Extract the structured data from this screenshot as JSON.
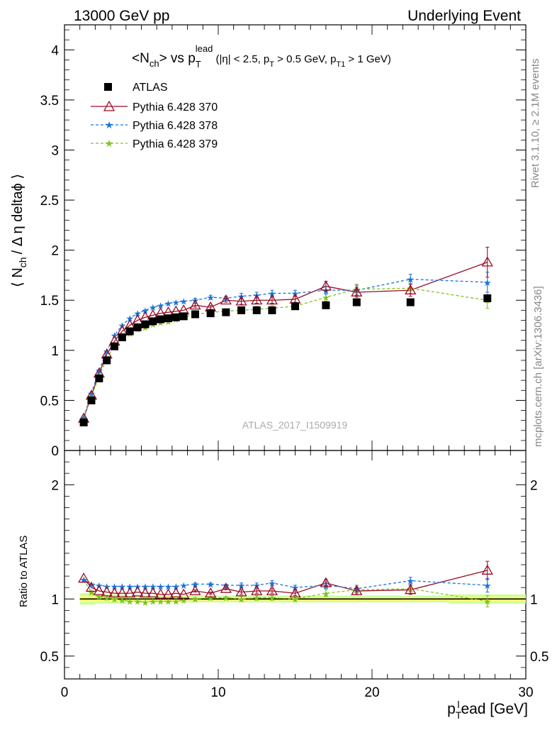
{
  "header": {
    "left": "13000 GeV pp",
    "right": "Underlying Event"
  },
  "side_labels": {
    "rivet": "Rivet 3.1.10, ≥ 2.1M events",
    "mcplots": "mcplots.cern.ch [arXiv:1306.3436]"
  },
  "plot_title": {
    "main": "<N",
    "main_sub": "ch",
    "vs": "> vs p",
    "vs_sub": "T",
    "vs_sup": "lead",
    "cuts_1": " (|η| < 2.5, p",
    "cuts_sub_1": "T",
    "cuts_2": " > 0.5 GeV, p",
    "cuts_sub_2": "T1",
    "cuts_3": " > 1 GeV)"
  },
  "watermark": "ATLAS_2017_I1509919",
  "ylabel_main": {
    "a": "⟨ N",
    "a_sub": "ch",
    "b": "/ Δ η deltaϕ ⟩"
  },
  "ylabel_ratio": "Ratio to ATLAS",
  "xlabel": {
    "a": "p",
    "a_sub": "T",
    "a_sup": "l",
    "b": "ead [GeV]"
  },
  "colors": {
    "atlas": "#000000",
    "p370": "#9a0c25",
    "p378": "#1a73d9",
    "p379": "#7fc31c",
    "band_inner": "#ffff77",
    "band_outer": "#ccff99"
  },
  "chart_data": {
    "type": "scatter",
    "xlim": [
      0,
      30
    ],
    "ylim_main": [
      0,
      4.25
    ],
    "ylim_ratio": [
      0.3,
      2.3
    ],
    "x_ticks": [
      "0",
      "10",
      "20",
      "30"
    ],
    "y_ticks_main": [
      "0",
      "0.5",
      "1",
      "1.5",
      "2",
      "2.5",
      "3",
      "3.5",
      "4"
    ],
    "y_ticks_ratio": [
      "0.5",
      "1",
      "2"
    ],
    "legend_position": "top-left",
    "x": [
      1.25,
      1.75,
      2.25,
      2.75,
      3.25,
      3.75,
      4.25,
      4.75,
      5.25,
      5.75,
      6.25,
      6.75,
      7.25,
      7.75,
      8.5,
      9.5,
      10.5,
      11.5,
      12.5,
      13.5,
      15.0,
      17.0,
      19.0,
      22.5,
      27.5
    ],
    "series": [
      {
        "name": "ATLAS",
        "marker": "square",
        "values": [
          0.28,
          0.5,
          0.72,
          0.9,
          1.04,
          1.13,
          1.19,
          1.23,
          1.26,
          1.29,
          1.31,
          1.32,
          1.33,
          1.34,
          1.36,
          1.37,
          1.38,
          1.4,
          1.4,
          1.4,
          1.44,
          1.45,
          1.48,
          1.48,
          1.52
        ]
      },
      {
        "name": "Pythia 6.428 370",
        "marker": "triangle",
        "values": [
          0.32,
          0.55,
          0.77,
          0.96,
          1.09,
          1.19,
          1.25,
          1.3,
          1.33,
          1.35,
          1.37,
          1.38,
          1.39,
          1.4,
          1.45,
          1.43,
          1.5,
          1.49,
          1.5,
          1.5,
          1.51,
          1.64,
          1.58,
          1.6,
          1.88
        ],
        "err": [
          0,
          0,
          0,
          0,
          0,
          0,
          0,
          0,
          0,
          0,
          0,
          0,
          0,
          0,
          0.02,
          0.02,
          0.02,
          0.03,
          0.03,
          0.03,
          0.03,
          0.05,
          0.05,
          0.06,
          0.15
        ]
      },
      {
        "name": "Pythia 6.428 378",
        "marker": "star",
        "values": [
          0.33,
          0.57,
          0.8,
          0.99,
          1.15,
          1.25,
          1.32,
          1.37,
          1.4,
          1.43,
          1.45,
          1.47,
          1.48,
          1.49,
          1.5,
          1.53,
          1.52,
          1.54,
          1.55,
          1.57,
          1.57,
          1.6,
          1.6,
          1.71,
          1.68
        ],
        "err": [
          0,
          0,
          0,
          0,
          0,
          0,
          0,
          0,
          0,
          0,
          0,
          0,
          0,
          0,
          0.02,
          0.02,
          0.02,
          0.03,
          0.03,
          0.03,
          0.03,
          0.04,
          0.05,
          0.05,
          0.1
        ]
      },
      {
        "name": "Pythia 6.428 379",
        "marker": "star",
        "values": [
          0.32,
          0.54,
          0.74,
          0.92,
          1.05,
          1.13,
          1.17,
          1.21,
          1.23,
          1.26,
          1.28,
          1.29,
          1.31,
          1.33,
          1.36,
          1.38,
          1.39,
          1.4,
          1.41,
          1.42,
          1.44,
          1.53,
          1.61,
          1.62,
          1.5
        ],
        "err": [
          0,
          0,
          0,
          0,
          0,
          0,
          0,
          0,
          0,
          0,
          0,
          0,
          0,
          0,
          0.02,
          0.02,
          0.02,
          0.03,
          0.03,
          0.03,
          0.03,
          0.04,
          0.05,
          0.05,
          0.08
        ]
      }
    ],
    "ratio_series": [
      {
        "name": "Pythia 6.428 370",
        "values": [
          1.18,
          1.1,
          1.07,
          1.06,
          1.05,
          1.05,
          1.05,
          1.06,
          1.05,
          1.05,
          1.04,
          1.04,
          1.05,
          1.04,
          1.07,
          1.05,
          1.09,
          1.06,
          1.07,
          1.07,
          1.05,
          1.14,
          1.07,
          1.08,
          1.25
        ],
        "err": [
          0,
          0,
          0,
          0,
          0,
          0,
          0,
          0,
          0,
          0,
          0,
          0,
          0,
          0,
          0.01,
          0.01,
          0.01,
          0.02,
          0.02,
          0.02,
          0.02,
          0.03,
          0.03,
          0.04,
          0.08
        ]
      },
      {
        "name": "Pythia 6.428 378",
        "values": [
          1.17,
          1.13,
          1.12,
          1.11,
          1.11,
          1.11,
          1.11,
          1.11,
          1.11,
          1.11,
          1.11,
          1.11,
          1.11,
          1.12,
          1.13,
          1.13,
          1.12,
          1.12,
          1.12,
          1.14,
          1.1,
          1.12,
          1.09,
          1.16,
          1.12
        ],
        "err": [
          0,
          0,
          0,
          0,
          0,
          0,
          0,
          0,
          0,
          0,
          0,
          0,
          0,
          0,
          0.01,
          0.01,
          0.01,
          0.02,
          0.02,
          0.02,
          0.02,
          0.03,
          0.03,
          0.03,
          0.06
        ]
      },
      {
        "name": "Pythia 6.428 379",
        "values": [
          1.17,
          1.06,
          1.02,
          1.01,
          1.0,
          0.99,
          0.98,
          0.98,
          0.97,
          0.98,
          0.98,
          0.98,
          0.98,
          0.99,
          1.0,
          1.01,
          1.01,
          1.0,
          1.01,
          1.01,
          1.0,
          1.05,
          1.08,
          1.09,
          0.98
        ],
        "err": [
          0,
          0,
          0,
          0,
          0,
          0,
          0,
          0,
          0,
          0,
          0,
          0,
          0,
          0,
          0.01,
          0.01,
          0.01,
          0.02,
          0.02,
          0.02,
          0.02,
          0.03,
          0.03,
          0.03,
          0.05
        ]
      }
    ],
    "data_uncertainty_band": {
      "x": [
        1.0,
        2.0,
        4.0,
        8.0,
        14.0,
        25.0,
        30.0
      ],
      "inner": [
        0.025,
        0.02,
        0.015,
        0.015,
        0.015,
        0.02,
        0.025
      ],
      "outer": [
        0.05,
        0.04,
        0.03,
        0.03,
        0.03,
        0.04,
        0.05
      ]
    }
  }
}
